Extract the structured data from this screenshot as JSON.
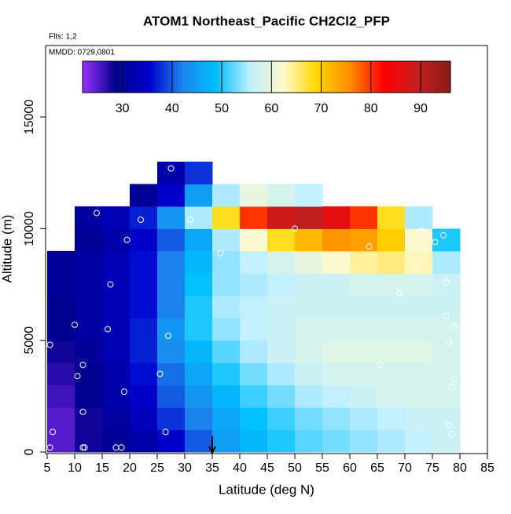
{
  "chart_data": {
    "type": "heatmap",
    "title": "ATOM1 Northeast_Pacific CH2Cl2_PFP",
    "subtitle_lines": [
      "Flts: 1,2",
      "MMDD: 0729,0801"
    ],
    "x_label": "Latitude (deg N)",
    "y_label": "Altitude (m)",
    "xlim": [
      5,
      85
    ],
    "ylim": [
      0,
      18200
    ],
    "xticks": [
      5,
      10,
      15,
      20,
      25,
      30,
      35,
      40,
      45,
      50,
      55,
      60,
      65,
      70,
      75,
      80,
      85
    ],
    "yticks": [
      0,
      5000,
      10000,
      15000
    ],
    "xbins": [
      5,
      10,
      15,
      20,
      25,
      30,
      35,
      40,
      45,
      50,
      55,
      60,
      65,
      70,
      75,
      80
    ],
    "ybins": [
      0,
      1000,
      2000,
      3000,
      4000,
      5000,
      6000,
      7000,
      8000,
      9000,
      10000,
      11000,
      12000,
      13000
    ],
    "z": [
      [
        25,
        28,
        30,
        32,
        35,
        40,
        45,
        48,
        50,
        52,
        53,
        54,
        55,
        56,
        57
      ],
      [
        25,
        28,
        31,
        34,
        38,
        42,
        46,
        49,
        51,
        53,
        54,
        55,
        56,
        57,
        57
      ],
      [
        26,
        29,
        32,
        35,
        40,
        44,
        48,
        51,
        53,
        55,
        56,
        57,
        58,
        58,
        58
      ],
      [
        27,
        29,
        32,
        36,
        41,
        46,
        50,
        53,
        55,
        57,
        58,
        58,
        58,
        58,
        58
      ],
      [
        28,
        30,
        33,
        37,
        43,
        48,
        52,
        55,
        57,
        58,
        59,
        59,
        59,
        59,
        58
      ],
      [
        29,
        31,
        33,
        37,
        44,
        50,
        54,
        56,
        57,
        58,
        58,
        58,
        58,
        58,
        58
      ],
      [
        29,
        31,
        33,
        36,
        42,
        50,
        55,
        56,
        57,
        57,
        57,
        57,
        57,
        57,
        57
      ],
      [
        30,
        31,
        33,
        36,
        42,
        49,
        54,
        55,
        56,
        57,
        57,
        58,
        58,
        58,
        57
      ],
      [
        30,
        31,
        33,
        36,
        42,
        48,
        54,
        56,
        58,
        60,
        62,
        64,
        65,
        63,
        55
      ],
      [
        null,
        30,
        32,
        35,
        40,
        46,
        55,
        62,
        68,
        72,
        75,
        74,
        70,
        62,
        50
      ],
      [
        null,
        31,
        33,
        37,
        44,
        55,
        68,
        80,
        88,
        90,
        86,
        80,
        68,
        55,
        null
      ],
      [
        null,
        null,
        null,
        30,
        35,
        45,
        55,
        60,
        58,
        56,
        null,
        null,
        null,
        null,
        null
      ],
      [
        null,
        null,
        null,
        null,
        32,
        38,
        null,
        null,
        null,
        null,
        null,
        null,
        null,
        null,
        null
      ]
    ],
    "zlim": [
      22,
      96
    ],
    "colorbar_ticks": [
      30,
      40,
      50,
      60,
      70,
      80,
      90
    ],
    "colorscale": [
      "#9b30ff",
      "#00008b",
      "#0000cd",
      "#1c86ee",
      "#00bfff",
      "#bfefff",
      "#fffacd",
      "#ffd700",
      "#ff8c00",
      "#ff0000",
      "#c41e1e",
      "#8b1a1a"
    ],
    "samples": {
      "x": [
        5.5,
        5.5,
        6,
        8,
        10,
        10.5,
        11.5,
        11.5,
        11.5,
        11.8,
        14,
        14,
        16,
        16.5,
        17.5,
        18.5,
        19,
        19.5,
        22,
        25.5,
        26.5,
        27,
        27.5,
        31,
        36.5,
        44.5,
        50,
        63.5,
        65.5,
        67.5,
        69,
        72,
        73,
        75.5,
        77,
        77.5,
        77.5,
        78,
        78,
        78.5,
        78.5,
        79,
        79
      ],
      "y": [
        4800,
        200,
        900,
        11300,
        5700,
        3400,
        3900,
        1800,
        200,
        200,
        11300,
        10700,
        5500,
        7500,
        200,
        200,
        2700,
        9500,
        10400,
        3500,
        900,
        5200,
        12700,
        10400,
        8900,
        9500,
        10000,
        9200,
        3900,
        11300,
        7100,
        8200,
        9900,
        9400,
        9700,
        7600,
        6100,
        4900,
        1200,
        800,
        2900,
        3300,
        5600
      ]
    },
    "arrow_x": 35
  }
}
